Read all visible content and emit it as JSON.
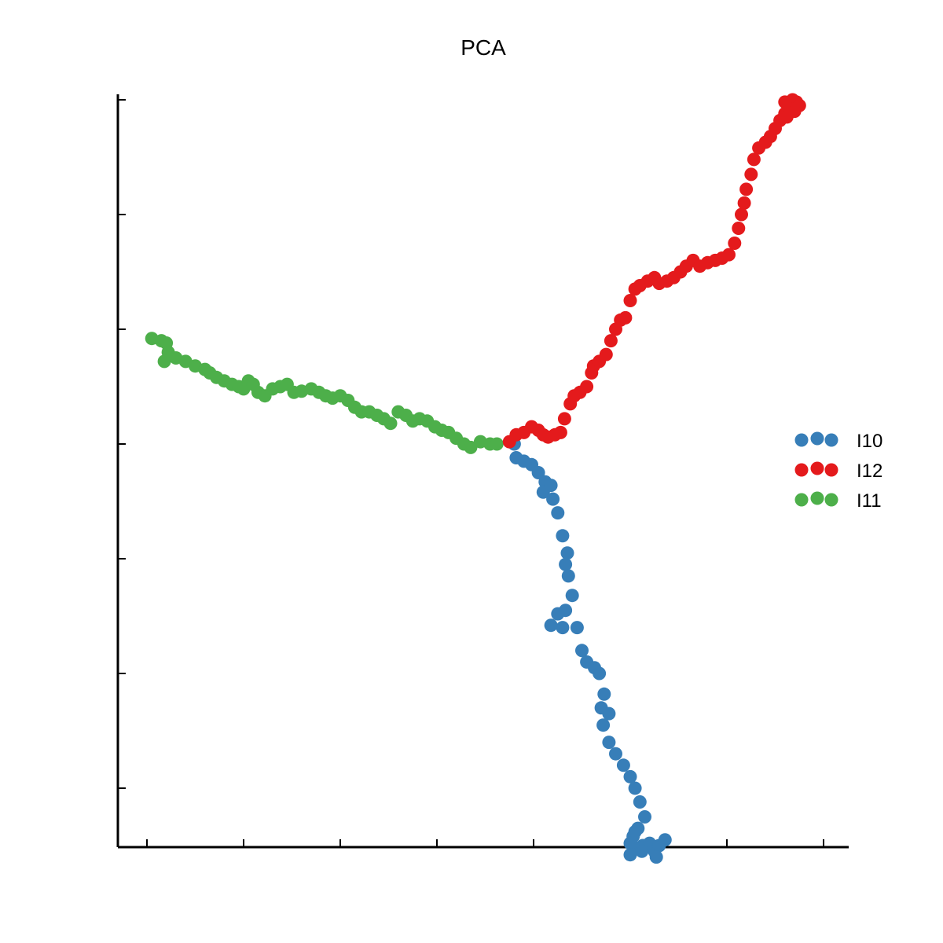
{
  "chart_data": {
    "type": "scatter",
    "title": "PCA",
    "xlabel": "",
    "ylabel": "",
    "xlim": [
      -0.3,
      7.3
    ],
    "ylim": [
      -3.5,
      3.5
    ],
    "xticks": [
      0,
      1,
      2,
      3,
      4,
      5,
      6,
      7
    ],
    "yticks": [
      -3,
      -2,
      -1,
      0,
      1,
      2,
      3
    ],
    "show_tick_labels": false,
    "grid": false,
    "legend_position": "right",
    "series": [
      {
        "name": "I10",
        "color": "#377eb8",
        "points": [
          [
            3.8,
            0.0
          ],
          [
            3.82,
            -0.12
          ],
          [
            3.9,
            -0.15
          ],
          [
            3.98,
            -0.18
          ],
          [
            4.05,
            -0.25
          ],
          [
            4.12,
            -0.33
          ],
          [
            4.1,
            -0.42
          ],
          [
            4.18,
            -0.36
          ],
          [
            4.2,
            -0.48
          ],
          [
            4.25,
            -0.6
          ],
          [
            4.3,
            -0.8
          ],
          [
            4.35,
            -0.95
          ],
          [
            4.33,
            -1.05
          ],
          [
            4.36,
            -1.15
          ],
          [
            4.4,
            -1.32
          ],
          [
            4.33,
            -1.45
          ],
          [
            4.25,
            -1.48
          ],
          [
            4.18,
            -1.58
          ],
          [
            4.3,
            -1.6
          ],
          [
            4.45,
            -1.6
          ],
          [
            4.5,
            -1.8
          ],
          [
            4.55,
            -1.9
          ],
          [
            4.63,
            -1.95
          ],
          [
            4.68,
            -2.0
          ],
          [
            4.73,
            -2.18
          ],
          [
            4.7,
            -2.3
          ],
          [
            4.78,
            -2.35
          ],
          [
            4.72,
            -2.45
          ],
          [
            4.78,
            -2.6
          ],
          [
            4.85,
            -2.7
          ],
          [
            4.93,
            -2.8
          ],
          [
            5.0,
            -2.9
          ],
          [
            5.05,
            -3.0
          ],
          [
            5.1,
            -3.12
          ],
          [
            5.15,
            -3.25
          ],
          [
            5.08,
            -3.35
          ],
          [
            5.03,
            -3.42
          ],
          [
            5.05,
            -3.52
          ],
          [
            5.0,
            -3.48
          ],
          [
            5.13,
            -3.5
          ],
          [
            5.2,
            -3.48
          ],
          [
            5.25,
            -3.55
          ],
          [
            5.3,
            -3.5
          ],
          [
            5.36,
            -3.45
          ],
          [
            5.27,
            -3.6
          ],
          [
            5.12,
            -3.55
          ],
          [
            5.05,
            -3.38
          ],
          [
            5.0,
            -3.58
          ]
        ]
      },
      {
        "name": "I12",
        "color": "#e41a1c",
        "points": [
          [
            3.75,
            0.02
          ],
          [
            3.82,
            0.08
          ],
          [
            3.9,
            0.1
          ],
          [
            3.98,
            0.15
          ],
          [
            4.05,
            0.12
          ],
          [
            4.1,
            0.08
          ],
          [
            4.15,
            0.06
          ],
          [
            4.22,
            0.08
          ],
          [
            4.28,
            0.1
          ],
          [
            4.32,
            0.22
          ],
          [
            4.38,
            0.35
          ],
          [
            4.42,
            0.42
          ],
          [
            4.48,
            0.45
          ],
          [
            4.55,
            0.5
          ],
          [
            4.6,
            0.62
          ],
          [
            4.62,
            0.68
          ],
          [
            4.68,
            0.72
          ],
          [
            4.75,
            0.78
          ],
          [
            4.8,
            0.9
          ],
          [
            4.85,
            1.0
          ],
          [
            4.9,
            1.08
          ],
          [
            4.95,
            1.1
          ],
          [
            5.0,
            1.25
          ],
          [
            5.05,
            1.35
          ],
          [
            5.1,
            1.38
          ],
          [
            5.18,
            1.42
          ],
          [
            5.25,
            1.45
          ],
          [
            5.3,
            1.4
          ],
          [
            5.38,
            1.42
          ],
          [
            5.45,
            1.45
          ],
          [
            5.52,
            1.5
          ],
          [
            5.58,
            1.55
          ],
          [
            5.65,
            1.6
          ],
          [
            5.72,
            1.55
          ],
          [
            5.8,
            1.58
          ],
          [
            5.88,
            1.6
          ],
          [
            5.95,
            1.62
          ],
          [
            6.02,
            1.65
          ],
          [
            6.08,
            1.75
          ],
          [
            6.12,
            1.88
          ],
          [
            6.15,
            2.0
          ],
          [
            6.18,
            2.1
          ],
          [
            6.2,
            2.22
          ],
          [
            6.25,
            2.35
          ],
          [
            6.28,
            2.48
          ],
          [
            6.33,
            2.58
          ],
          [
            6.4,
            2.63
          ],
          [
            6.45,
            2.68
          ],
          [
            6.5,
            2.75
          ],
          [
            6.55,
            2.82
          ],
          [
            6.6,
            2.88
          ],
          [
            6.63,
            2.95
          ],
          [
            6.68,
            3.0
          ],
          [
            6.72,
            2.98
          ],
          [
            6.75,
            2.95
          ],
          [
            6.6,
            2.98
          ],
          [
            6.65,
            2.92
          ],
          [
            6.7,
            2.9
          ],
          [
            6.62,
            2.85
          ]
        ]
      },
      {
        "name": "I11",
        "color": "#4daf4a",
        "points": [
          [
            0.05,
            0.92
          ],
          [
            0.15,
            0.9
          ],
          [
            0.2,
            0.88
          ],
          [
            0.22,
            0.8
          ],
          [
            0.18,
            0.72
          ],
          [
            0.3,
            0.75
          ],
          [
            0.4,
            0.72
          ],
          [
            0.5,
            0.68
          ],
          [
            0.6,
            0.65
          ],
          [
            0.65,
            0.62
          ],
          [
            0.72,
            0.58
          ],
          [
            0.8,
            0.55
          ],
          [
            0.88,
            0.52
          ],
          [
            0.95,
            0.5
          ],
          [
            1.0,
            0.48
          ],
          [
            1.05,
            0.55
          ],
          [
            1.1,
            0.52
          ],
          [
            1.15,
            0.45
          ],
          [
            1.22,
            0.42
          ],
          [
            1.3,
            0.48
          ],
          [
            1.38,
            0.5
          ],
          [
            1.45,
            0.52
          ],
          [
            1.52,
            0.45
          ],
          [
            1.6,
            0.46
          ],
          [
            1.7,
            0.48
          ],
          [
            1.78,
            0.45
          ],
          [
            1.85,
            0.42
          ],
          [
            1.92,
            0.4
          ],
          [
            2.0,
            0.42
          ],
          [
            2.08,
            0.38
          ],
          [
            2.15,
            0.32
          ],
          [
            2.22,
            0.28
          ],
          [
            2.3,
            0.28
          ],
          [
            2.38,
            0.25
          ],
          [
            2.45,
            0.22
          ],
          [
            2.52,
            0.18
          ],
          [
            2.6,
            0.28
          ],
          [
            2.68,
            0.25
          ],
          [
            2.75,
            0.2
          ],
          [
            2.82,
            0.22
          ],
          [
            2.9,
            0.2
          ],
          [
            2.98,
            0.15
          ],
          [
            3.05,
            0.12
          ],
          [
            3.12,
            0.1
          ],
          [
            3.2,
            0.05
          ],
          [
            3.28,
            0.0
          ],
          [
            3.35,
            -0.03
          ],
          [
            3.45,
            0.02
          ],
          [
            3.55,
            0.0
          ],
          [
            3.62,
            0.0
          ]
        ]
      }
    ]
  }
}
